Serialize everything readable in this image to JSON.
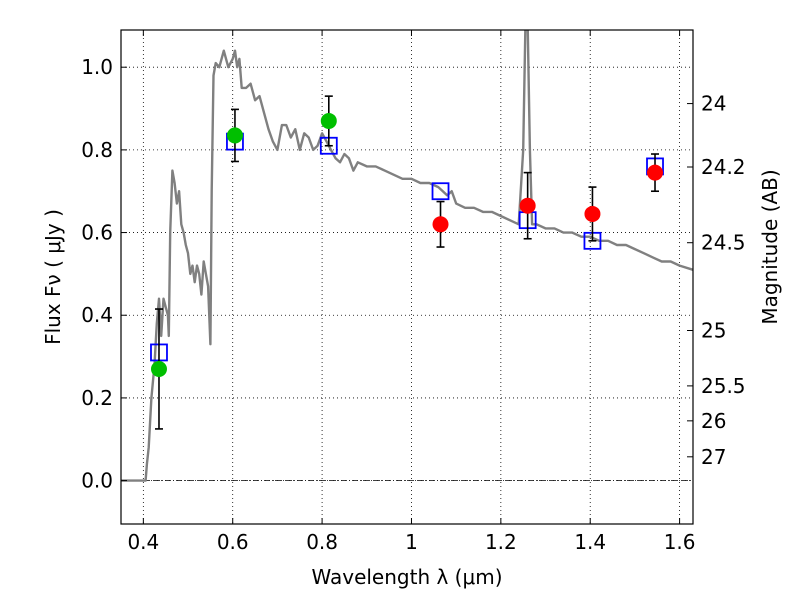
{
  "chart_data": {
    "type": "scatter",
    "title": "",
    "xlabel": "Wavelength  λ (μm)",
    "ylabel": "Flux  Fν  ( μJy )",
    "y2label": "Magnitude (AB)",
    "xlim": [
      0.35,
      1.63
    ],
    "ylim": [
      -0.105,
      1.09
    ],
    "grid": true,
    "grid_style": "dotted",
    "x_ticks": [
      0.4,
      0.6,
      0.8,
      1.0,
      1.2,
      1.4,
      1.6
    ],
    "x_tick_labels": [
      "0.4",
      "0.6",
      "0.8",
      "1",
      "1.2",
      "1.4",
      "1.6"
    ],
    "y_ticks": [
      0.0,
      0.2,
      0.4,
      0.6,
      0.8,
      1.0
    ],
    "y_tick_labels": [
      "0.0",
      "0.2",
      "0.4",
      "0.6",
      "0.8",
      "1.0"
    ],
    "mag_ticks": [
      {
        "label": "24",
        "mag": 24.0
      },
      {
        "label": "24.2",
        "mag": 24.2
      },
      {
        "label": "24.5",
        "mag": 24.5
      },
      {
        "label": "25",
        "mag": 25.0
      },
      {
        "label": "25.5",
        "mag": 25.5
      },
      {
        "label": "26",
        "mag": 26.0
      },
      {
        "label": "27",
        "mag": 27.0
      }
    ],
    "zero_line": true,
    "colors": {
      "model": "#808080",
      "observed_green": "#00bf00",
      "observed_red": "#ff0000",
      "model_photometry": "#0000ff",
      "errorbar": "#000000"
    },
    "series": [
      {
        "kind": "line",
        "color_key": "model",
        "x": [
          0.35,
          0.405,
          0.408,
          0.412,
          0.418,
          0.425,
          0.43,
          0.435,
          0.44,
          0.445,
          0.45,
          0.455,
          0.457,
          0.46,
          0.465,
          0.47,
          0.475,
          0.48,
          0.485,
          0.49,
          0.495,
          0.5,
          0.505,
          0.51,
          0.515,
          0.52,
          0.525,
          0.53,
          0.535,
          0.54,
          0.545,
          0.55,
          0.553,
          0.557,
          0.562,
          0.57,
          0.58,
          0.59,
          0.6,
          0.605,
          0.61,
          0.615,
          0.62,
          0.63,
          0.64,
          0.65,
          0.66,
          0.67,
          0.68,
          0.69,
          0.7,
          0.71,
          0.72,
          0.73,
          0.74,
          0.75,
          0.76,
          0.77,
          0.78,
          0.79,
          0.8,
          0.81,
          0.82,
          0.83,
          0.84,
          0.85,
          0.86,
          0.87,
          0.88,
          0.9,
          0.92,
          0.94,
          0.96,
          0.98,
          1.0,
          1.02,
          1.04,
          1.06,
          1.07,
          1.08,
          1.09,
          1.1,
          1.12,
          1.14,
          1.16,
          1.18,
          1.2,
          1.22,
          1.24,
          1.25,
          1.255,
          1.26,
          1.265,
          1.27,
          1.28,
          1.3,
          1.32,
          1.34,
          1.36,
          1.38,
          1.4,
          1.42,
          1.44,
          1.46,
          1.48,
          1.5,
          1.52,
          1.54,
          1.56,
          1.58,
          1.6,
          1.63
        ],
        "y": [
          0.0,
          0.0,
          0.04,
          0.08,
          0.2,
          0.28,
          0.38,
          0.44,
          0.35,
          0.44,
          0.42,
          0.4,
          0.35,
          0.6,
          0.75,
          0.72,
          0.67,
          0.7,
          0.62,
          0.6,
          0.57,
          0.55,
          0.5,
          0.52,
          0.48,
          0.52,
          0.5,
          0.45,
          0.53,
          0.5,
          0.47,
          0.33,
          0.7,
          0.98,
          1.01,
          1.0,
          1.04,
          1.0,
          1.02,
          1.04,
          1.0,
          1.02,
          0.95,
          0.95,
          0.96,
          0.92,
          0.93,
          0.89,
          0.85,
          0.82,
          0.8,
          0.86,
          0.86,
          0.83,
          0.85,
          0.8,
          0.84,
          0.83,
          0.8,
          0.81,
          0.84,
          0.82,
          0.8,
          0.78,
          0.77,
          0.79,
          0.78,
          0.75,
          0.77,
          0.76,
          0.76,
          0.75,
          0.74,
          0.73,
          0.73,
          0.72,
          0.72,
          0.71,
          0.7,
          0.69,
          0.7,
          0.67,
          0.66,
          0.66,
          0.65,
          0.65,
          0.64,
          0.63,
          0.62,
          0.8,
          1.1,
          1.1,
          0.8,
          0.62,
          0.62,
          0.61,
          0.61,
          0.6,
          0.6,
          0.59,
          0.59,
          0.58,
          0.58,
          0.57,
          0.57,
          0.56,
          0.55,
          0.54,
          0.53,
          0.53,
          0.52,
          0.51
        ]
      },
      {
        "kind": "square",
        "color_key": "model_photometry",
        "x": [
          0.435,
          0.605,
          0.815,
          1.065,
          1.26,
          1.405,
          1.545
        ],
        "y": [
          0.31,
          0.82,
          0.81,
          0.7,
          0.63,
          0.58,
          0.76
        ]
      },
      {
        "kind": "point",
        "color_key": "observed_green",
        "x": [
          0.435,
          0.605,
          0.815
        ],
        "y": [
          0.27,
          0.835,
          0.87
        ],
        "yerr": [
          0.145,
          0.063,
          0.06
        ]
      },
      {
        "kind": "point",
        "color_key": "observed_red",
        "x": [
          1.065,
          1.26,
          1.405,
          1.545
        ],
        "y": [
          0.62,
          0.665,
          0.645,
          0.745
        ],
        "yerr": [
          0.055,
          0.08,
          0.065,
          0.045
        ]
      }
    ]
  }
}
